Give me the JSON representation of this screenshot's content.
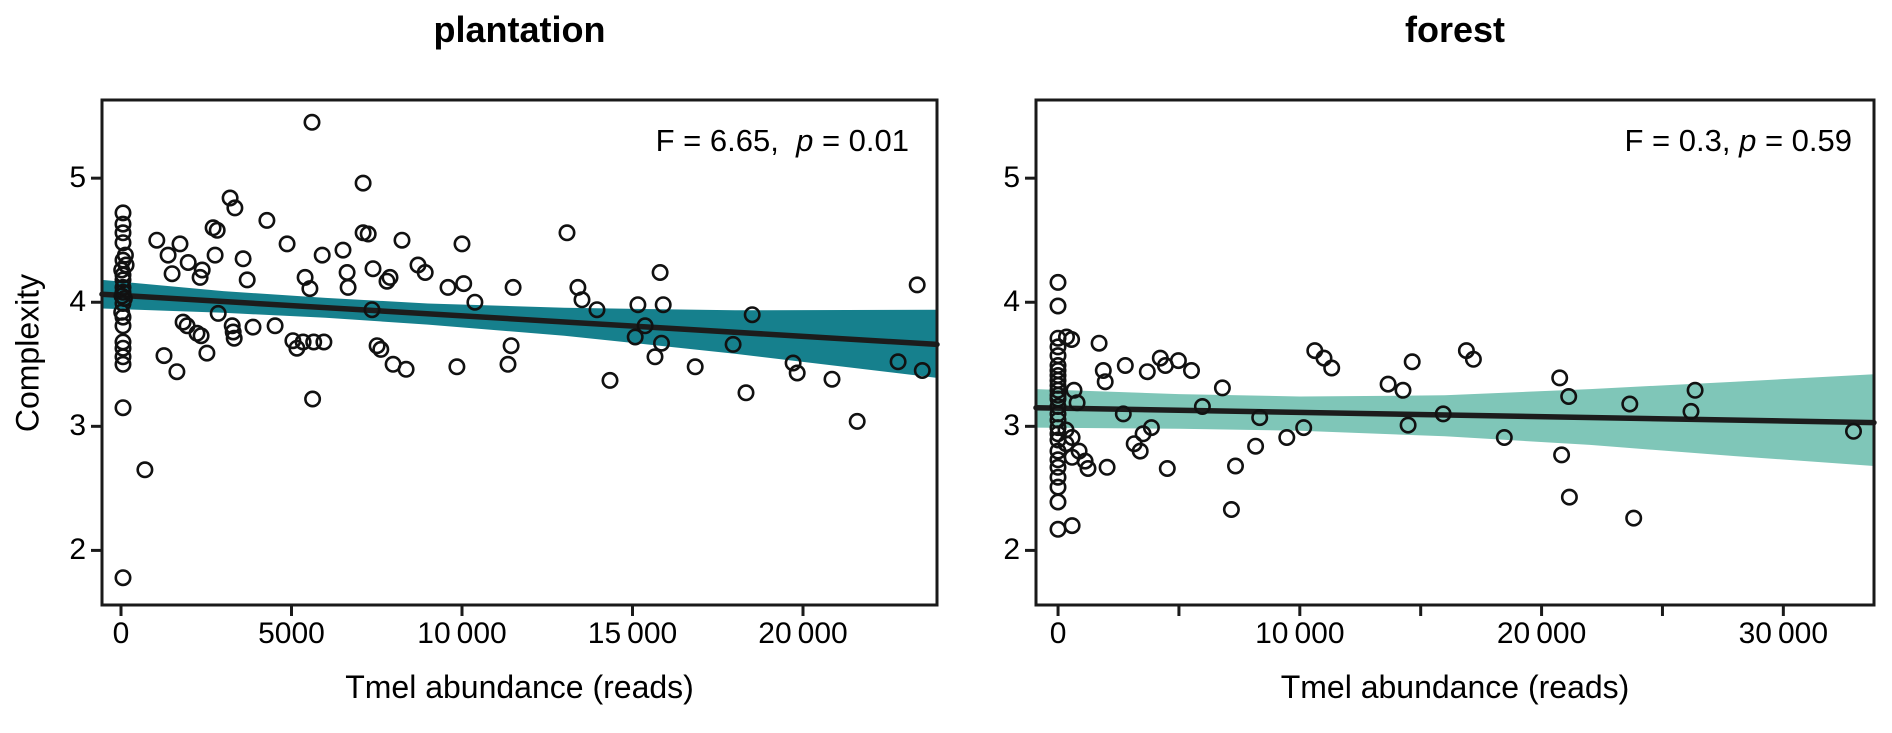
{
  "figure": {
    "background": "#ffffff",
    "point_style": "open-circle",
    "ylabel": "Complexity"
  },
  "chart_data": [
    {
      "type": "scatter",
      "title": "plantation",
      "xlabel": "Tmel abundance (reads)",
      "ylabel": "Complexity",
      "annotation": {
        "prefix": "F = 6.65,  ",
        "italic": "p",
        "suffix": " = 0.01"
      },
      "stats": {
        "F": 6.65,
        "p": 0.01
      },
      "xlim": [
        -557,
        23930
      ],
      "ylim": [
        1.56,
        5.63
      ],
      "grid": false,
      "legend": "none",
      "x_ticks": [
        {
          "v": 0,
          "label": "0"
        },
        {
          "v": 5000,
          "label": "5000"
        },
        {
          "v": 10000,
          "label": "10 000"
        },
        {
          "v": 15000,
          "label": "15 000"
        },
        {
          "v": 20000,
          "label": "20 000"
        }
      ],
      "y_ticks": [
        {
          "v": 2,
          "label": "2"
        },
        {
          "v": 3,
          "label": "3"
        },
        {
          "v": 4,
          "label": "4"
        },
        {
          "v": 5,
          "label": "5"
        }
      ],
      "regression": {
        "x": [
          -557,
          23930
        ],
        "y": [
          4.065,
          3.66
        ]
      },
      "ribbon": {
        "x": [
          -557,
          3000,
          6000,
          9000,
          13000,
          18000,
          23930
        ],
        "upper": [
          4.18,
          4.09,
          4.035,
          3.99,
          3.955,
          3.935,
          3.94
        ],
        "lower": [
          3.95,
          3.915,
          3.875,
          3.82,
          3.73,
          3.585,
          3.39
        ]
      },
      "colors": {
        "ribbon": "#16808D",
        "line": "#1C1C1C",
        "point": "#111111"
      },
      "points": [
        [
          60,
          4.72
        ],
        [
          60,
          4.63
        ],
        [
          60,
          4.56
        ],
        [
          60,
          4.48
        ],
        [
          130,
          4.38
        ],
        [
          60,
          4.34
        ],
        [
          150,
          4.3
        ],
        [
          20,
          4.26
        ],
        [
          60,
          4.22
        ],
        [
          60,
          4.18
        ],
        [
          60,
          4.12
        ],
        [
          60,
          4.08
        ],
        [
          30,
          4.05
        ],
        [
          100,
          4.03
        ],
        [
          60,
          3.99
        ],
        [
          20,
          3.92
        ],
        [
          60,
          3.88
        ],
        [
          60,
          3.81
        ],
        [
          60,
          3.68
        ],
        [
          60,
          3.63
        ],
        [
          60,
          3.56
        ],
        [
          60,
          3.5
        ],
        [
          60,
          3.15
        ],
        [
          60,
          1.78
        ],
        [
          700,
          2.65
        ],
        [
          1050,
          4.5
        ],
        [
          1260,
          3.57
        ],
        [
          1380,
          4.38
        ],
        [
          1500,
          4.23
        ],
        [
          1640,
          3.44
        ],
        [
          1730,
          4.47
        ],
        [
          1820,
          3.84
        ],
        [
          1940,
          3.81
        ],
        [
          1970,
          4.32
        ],
        [
          2230,
          3.75
        ],
        [
          2320,
          4.2
        ],
        [
          2350,
          3.73
        ],
        [
          2380,
          4.26
        ],
        [
          2520,
          3.59
        ],
        [
          2700,
          4.6
        ],
        [
          2760,
          4.38
        ],
        [
          2820,
          4.58
        ],
        [
          2850,
          3.91
        ],
        [
          3200,
          4.84
        ],
        [
          3260,
          3.81
        ],
        [
          3290,
          3.76
        ],
        [
          3320,
          3.71
        ],
        [
          3340,
          4.76
        ],
        [
          3580,
          4.35
        ],
        [
          3700,
          4.18
        ],
        [
          3870,
          3.8
        ],
        [
          4280,
          4.66
        ],
        [
          4520,
          3.81
        ],
        [
          4870,
          4.47
        ],
        [
          5040,
          3.69
        ],
        [
          5160,
          3.63
        ],
        [
          5340,
          3.68
        ],
        [
          5400,
          4.2
        ],
        [
          5540,
          4.11
        ],
        [
          5600,
          5.45
        ],
        [
          5620,
          3.22
        ],
        [
          5650,
          3.68
        ],
        [
          5900,
          4.38
        ],
        [
          5950,
          3.68
        ],
        [
          6510,
          4.42
        ],
        [
          6630,
          4.24
        ],
        [
          6660,
          4.12
        ],
        [
          7100,
          4.96
        ],
        [
          7100,
          4.56
        ],
        [
          7250,
          4.55
        ],
        [
          7360,
          3.94
        ],
        [
          7390,
          4.27
        ],
        [
          7510,
          3.65
        ],
        [
          7620,
          3.62
        ],
        [
          7800,
          4.17
        ],
        [
          7890,
          4.2
        ],
        [
          7980,
          3.5
        ],
        [
          8240,
          4.5
        ],
        [
          8360,
          3.46
        ],
        [
          8710,
          4.3
        ],
        [
          8920,
          4.24
        ],
        [
          9590,
          4.12
        ],
        [
          9850,
          3.48
        ],
        [
          10000,
          4.47
        ],
        [
          10050,
          4.15
        ],
        [
          10380,
          4.0
        ],
        [
          11350,
          3.5
        ],
        [
          11440,
          3.65
        ],
        [
          11500,
          4.12
        ],
        [
          13080,
          4.56
        ],
        [
          13400,
          4.12
        ],
        [
          13520,
          4.02
        ],
        [
          13960,
          3.94
        ],
        [
          14340,
          3.37
        ],
        [
          15080,
          3.72
        ],
        [
          15160,
          3.98
        ],
        [
          15370,
          3.81
        ],
        [
          15660,
          3.56
        ],
        [
          15810,
          4.24
        ],
        [
          15850,
          3.67
        ],
        [
          15900,
          3.98
        ],
        [
          16840,
          3.48
        ],
        [
          17950,
          3.66
        ],
        [
          18330,
          3.27
        ],
        [
          18510,
          3.9
        ],
        [
          19710,
          3.51
        ],
        [
          19830,
          3.43
        ],
        [
          20850,
          3.38
        ],
        [
          21590,
          3.04
        ],
        [
          22790,
          3.52
        ],
        [
          23350,
          4.14
        ],
        [
          23500,
          3.45
        ]
      ]
    },
    {
      "type": "scatter",
      "title": "forest",
      "xlabel": "Tmel abundance (reads)",
      "ylabel": "Complexity",
      "annotation": {
        "prefix": "F = 0.3, ",
        "italic": "p",
        "suffix": " = 0.59"
      },
      "stats": {
        "F": 0.3,
        "p": 0.59
      },
      "xlim": [
        -912,
        33750
      ],
      "ylim": [
        1.56,
        5.63
      ],
      "grid": false,
      "legend": "none",
      "x_ticks": [
        {
          "v": 0,
          "label": "0"
        },
        {
          "v": 5000,
          "label": ""
        },
        {
          "v": 10000,
          "label": "10 000"
        },
        {
          "v": 15000,
          "label": ""
        },
        {
          "v": 20000,
          "label": "20 000"
        },
        {
          "v": 25000,
          "label": ""
        },
        {
          "v": 30000,
          "label": "30 000"
        }
      ],
      "y_ticks": [
        {
          "v": 2,
          "label": "2"
        },
        {
          "v": 3,
          "label": "3"
        },
        {
          "v": 4,
          "label": "4"
        },
        {
          "v": 5,
          "label": "5"
        }
      ],
      "regression": {
        "x": [
          -912,
          33750
        ],
        "y": [
          3.15,
          3.03
        ]
      },
      "ribbon": {
        "x": [
          -912,
          5000,
          10000,
          16000,
          22000,
          28000,
          33750
        ],
        "upper": [
          3.3,
          3.26,
          3.24,
          3.25,
          3.3,
          3.36,
          3.42
        ],
        "lower": [
          2.99,
          2.98,
          2.965,
          2.92,
          2.85,
          2.76,
          2.68
        ]
      },
      "colors": {
        "ribbon": "#7FC6B8",
        "line": "#1C1C1C",
        "point": "#111111"
      },
      "points": [
        [
          0,
          4.16
        ],
        [
          0,
          3.97
        ],
        [
          0,
          3.71
        ],
        [
          0,
          3.64
        ],
        [
          0,
          3.57
        ],
        [
          0,
          3.49
        ],
        [
          0,
          3.45
        ],
        [
          0,
          3.41
        ],
        [
          0,
          3.37
        ],
        [
          0,
          3.33
        ],
        [
          0,
          3.29
        ],
        [
          0,
          3.25
        ],
        [
          0,
          3.22
        ],
        [
          0,
          3.16
        ],
        [
          0,
          3.1
        ],
        [
          0,
          3.05
        ],
        [
          0,
          2.99
        ],
        [
          0,
          2.94
        ],
        [
          0,
          2.89
        ],
        [
          0,
          2.8
        ],
        [
          0,
          2.73
        ],
        [
          0,
          2.67
        ],
        [
          0,
          2.59
        ],
        [
          0,
          2.51
        ],
        [
          0,
          2.39
        ],
        [
          0,
          2.17
        ],
        [
          580,
          2.2
        ],
        [
          350,
          3.72
        ],
        [
          560,
          3.7
        ],
        [
          660,
          3.29
        ],
        [
          790,
          3.19
        ],
        [
          330,
          2.97
        ],
        [
          580,
          2.91
        ],
        [
          330,
          2.86
        ],
        [
          580,
          2.75
        ],
        [
          870,
          2.8
        ],
        [
          1120,
          2.72
        ],
        [
          1240,
          2.66
        ],
        [
          1700,
          3.67
        ],
        [
          1870,
          3.45
        ],
        [
          1950,
          3.36
        ],
        [
          2030,
          2.67
        ],
        [
          2700,
          3.1
        ],
        [
          2780,
          3.49
        ],
        [
          3150,
          2.86
        ],
        [
          3400,
          2.8
        ],
        [
          3520,
          2.94
        ],
        [
          3690,
          3.44
        ],
        [
          3860,
          2.99
        ],
        [
          4230,
          3.55
        ],
        [
          4440,
          3.49
        ],
        [
          4520,
          2.66
        ],
        [
          4980,
          3.53
        ],
        [
          5520,
          3.45
        ],
        [
          5970,
          3.16
        ],
        [
          6800,
          3.31
        ],
        [
          7170,
          2.33
        ],
        [
          7340,
          2.68
        ],
        [
          8170,
          2.84
        ],
        [
          8340,
          3.07
        ],
        [
          9460,
          2.91
        ],
        [
          10160,
          2.99
        ],
        [
          10620,
          3.61
        ],
        [
          11000,
          3.55
        ],
        [
          11320,
          3.47
        ],
        [
          13650,
          3.34
        ],
        [
          14270,
          3.29
        ],
        [
          14480,
          3.01
        ],
        [
          14650,
          3.52
        ],
        [
          15930,
          3.1
        ],
        [
          16890,
          3.61
        ],
        [
          17180,
          3.54
        ],
        [
          18460,
          2.91
        ],
        [
          20750,
          3.39
        ],
        [
          20830,
          2.77
        ],
        [
          21120,
          3.24
        ],
        [
          21150,
          2.43
        ],
        [
          23650,
          3.18
        ],
        [
          23810,
          2.26
        ],
        [
          26180,
          3.12
        ],
        [
          26350,
          3.29
        ],
        [
          32900,
          2.96
        ]
      ]
    }
  ]
}
